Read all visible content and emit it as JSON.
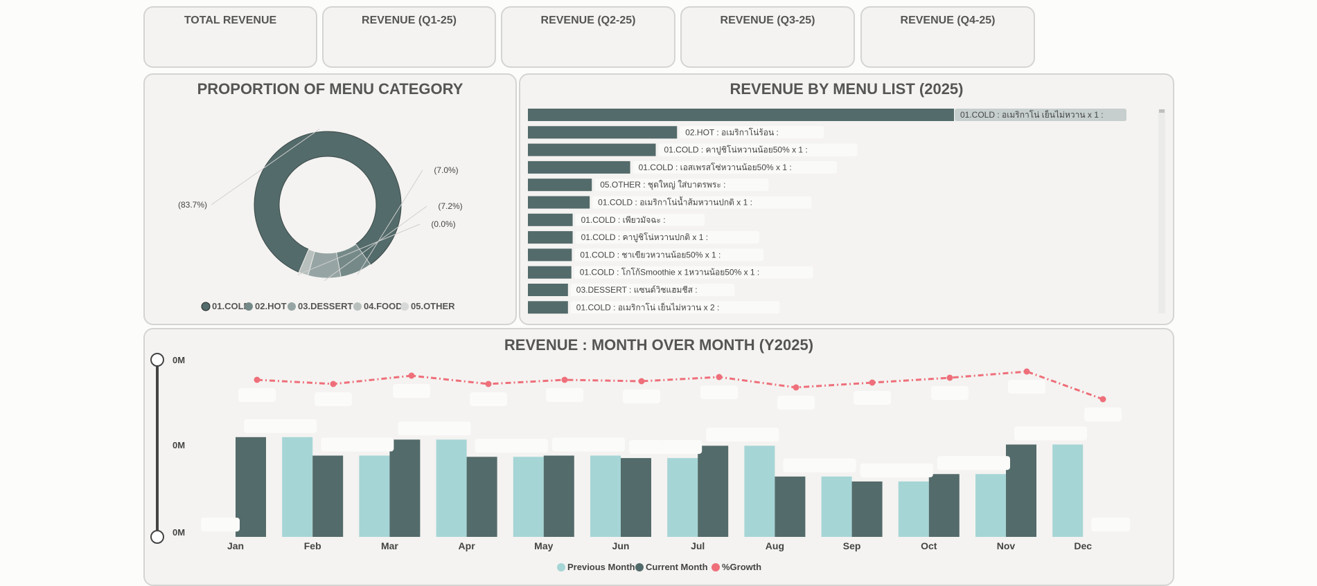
{
  "kpis": [
    {
      "title": "TOTAL REVENUE"
    },
    {
      "title": "REVENUE (Q1-25)"
    },
    {
      "title": "REVENUE (Q2-25)"
    },
    {
      "title": "REVENUE (Q3-25)"
    },
    {
      "title": "REVENUE (Q4-25)"
    }
  ],
  "colors": {
    "dark": "#536b6a",
    "cold": "#536b6a",
    "hot": "#758a88",
    "dessert": "#96a5a3",
    "food": "#b8c0be",
    "other": "#d6d9d7",
    "previous": "#a6d5d6",
    "growth": "#ee6f7a",
    "card_bg": "#f4f3f1"
  },
  "chart_data": [
    {
      "type": "pie",
      "title": "PROPORTION OF MENU CATEGORY",
      "slices": [
        {
          "label": "01.COLD",
          "value": 83.7,
          "display": "(83.7%)"
        },
        {
          "label": "02.HOT",
          "value": 7.0,
          "display": "(7.0%)"
        },
        {
          "label": "03.DESSERT",
          "value": 7.2,
          "display": "(7.2%)"
        },
        {
          "label": "04.FOOD",
          "value": 2.1,
          "display": ""
        },
        {
          "label": "05.OTHER",
          "value": 0.0,
          "display": "(0.0%)"
        }
      ],
      "legend": [
        "01.COLD",
        "02.HOT",
        "03.DESSERT",
        "04.FOOD",
        "05.OTHER"
      ],
      "legend_position": "bottom"
    },
    {
      "type": "bar",
      "orientation": "horizontal",
      "title": "REVENUE BY MENU LIST (2025)",
      "categories": [
        "01.COLD : อเมริกาโน่ เย็นไม่หวาน x 1 :",
        "02.HOT : อเมริกาโน่ร้อน :",
        "01.COLD : คาปูชิโน่หวานน้อย50% x 1 :",
        "01.COLD : เอสเพรสโซ่หวานน้อย50% x 1 :",
        "05.OTHER : ชุดใหญ่ ใส่บาตรพระ :",
        "01.COLD : อเมริกาโน่น้ำส้มหวานปกติ x 1 :",
        "01.COLD : เพียวมัจฉะ :",
        "01.COLD : คาปูชิโน่หวานปกติ x 1 :",
        "01.COLD : ชาเขียวหวานน้อย50% x 1 :",
        "01.COLD : โกโก้Smoothie x 1หวานน้อย50% x 1 :",
        "03.DESSERT : แซนด์วิชแฮมชีส :",
        "01.COLD : อเมริกาโน่ เย็นไม่หวาน x 2 :"
      ],
      "values": [
        100,
        35,
        30,
        24,
        15,
        14.5,
        10.5,
        10.5,
        10.3,
        10.2,
        9.4,
        9.4
      ]
    },
    {
      "type": "bar",
      "title": "REVENUE : MONTH OVER MONTH (Y2025)",
      "categories": [
        "Jan",
        "Feb",
        "Mar",
        "Apr",
        "May",
        "Jun",
        "Jul",
        "Aug",
        "Sep",
        "Oct",
        "Nov",
        "Dec"
      ],
      "series": [
        {
          "name": "Previous Month",
          "values": [
            0,
            81,
            66,
            79,
            65,
            66,
            64,
            74,
            49,
            45,
            51,
            75
          ]
        },
        {
          "name": "Current Month",
          "values": [
            81,
            66,
            79,
            65,
            66,
            64,
            74,
            49,
            45,
            51,
            75,
            0
          ]
        },
        {
          "name": "%Growth",
          "type": "line",
          "values": [
            92,
            90,
            94,
            90,
            93,
            92,
            94,
            88,
            91,
            94,
            98,
            78
          ]
        }
      ],
      "y_ticks": [
        "0M",
        "0M",
        "0M"
      ],
      "legend_position": "bottom"
    }
  ]
}
